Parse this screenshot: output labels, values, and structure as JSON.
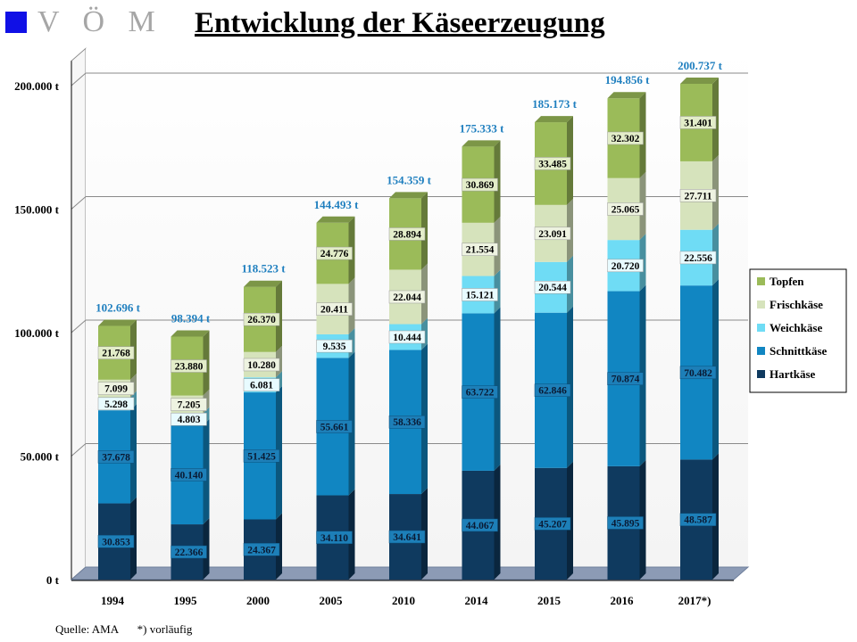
{
  "header": {
    "logo_text": "V Ö M",
    "logo_color": "#1010e6",
    "title": "Entwicklung der Käseerzeugung"
  },
  "footer": {
    "source": "Quelle: AMA",
    "note": "*) vorläufig"
  },
  "chart_data": {
    "type": "bar",
    "stacked": true,
    "categories": [
      "1994",
      "1995",
      "2000",
      "2005",
      "2010",
      "2014",
      "2015",
      "2016",
      "2017*)"
    ],
    "series": [
      {
        "name": "Hartkäse",
        "color": "#0f3a5f",
        "values": [
          30853,
          22366,
          24367,
          34110,
          34641,
          44067,
          45207,
          45895,
          48587
        ],
        "labels": [
          "30.853",
          "22.366",
          "24.367",
          "34.110",
          "34.641",
          "44.067",
          "45.207",
          "45.895",
          "48.587"
        ]
      },
      {
        "name": "Schnittkäse",
        "color": "#1186c2",
        "values": [
          37678,
          40140,
          51425,
          55661,
          58336,
          63722,
          62846,
          70874,
          70482
        ],
        "labels": [
          "37.678",
          "40.140",
          "51.425",
          "55.661",
          "58.336",
          "63.722",
          "62.846",
          "70.874",
          "70.482"
        ]
      },
      {
        "name": "Weichkäse",
        "color": "#6fdcf5",
        "values": [
          5298,
          4803,
          6081,
          9535,
          10444,
          15121,
          20544,
          20720,
          22556
        ],
        "labels": [
          "5.298",
          "4.803",
          "6.081",
          "9.535",
          "10.444",
          "15.121",
          "20.544",
          "20.720",
          "22.556"
        ]
      },
      {
        "name": "Frischkäse",
        "color": "#d6e3bc",
        "values": [
          7099,
          7205,
          10280,
          20411,
          22044,
          21554,
          23091,
          25065,
          27711
        ],
        "labels": [
          "7.099",
          "7.205",
          "10.280",
          "20.411",
          "22.044",
          "21.554",
          "23.091",
          "25.065",
          "27.711"
        ]
      },
      {
        "name": "Topfen",
        "color": "#9bbb59",
        "values": [
          21768,
          23880,
          26370,
          24776,
          28894,
          30869,
          33485,
          32302,
          31401
        ],
        "labels": [
          "21.768",
          "23.880",
          "26.370",
          "24.776",
          "28.894",
          "30.869",
          "33.485",
          "32.302",
          "31.401"
        ]
      }
    ],
    "totals": [
      102696,
      98394,
      118523,
      144493,
      154359,
      175333,
      185173,
      194856,
      200737
    ],
    "total_labels": [
      "102.696 t",
      "98.394 t",
      "118.523 t",
      "144.493 t",
      "154.359 t",
      "175.333 t",
      "185.173 t",
      "194.856 t",
      "200.737 t"
    ],
    "total_label_color": "#1f7fbf",
    "yticks": [
      0,
      50000,
      100000,
      150000,
      200000
    ],
    "ytick_labels": [
      "0 t",
      "50.000 t",
      "100.000 t",
      "150.000 t",
      "200.000 t"
    ],
    "ylim": [
      0,
      210000
    ],
    "grid": true,
    "legend_position": "right",
    "legend_order": [
      "Topfen",
      "Frischkäse",
      "Weichkäse",
      "Schnittkäse",
      "Hartkäse"
    ]
  }
}
